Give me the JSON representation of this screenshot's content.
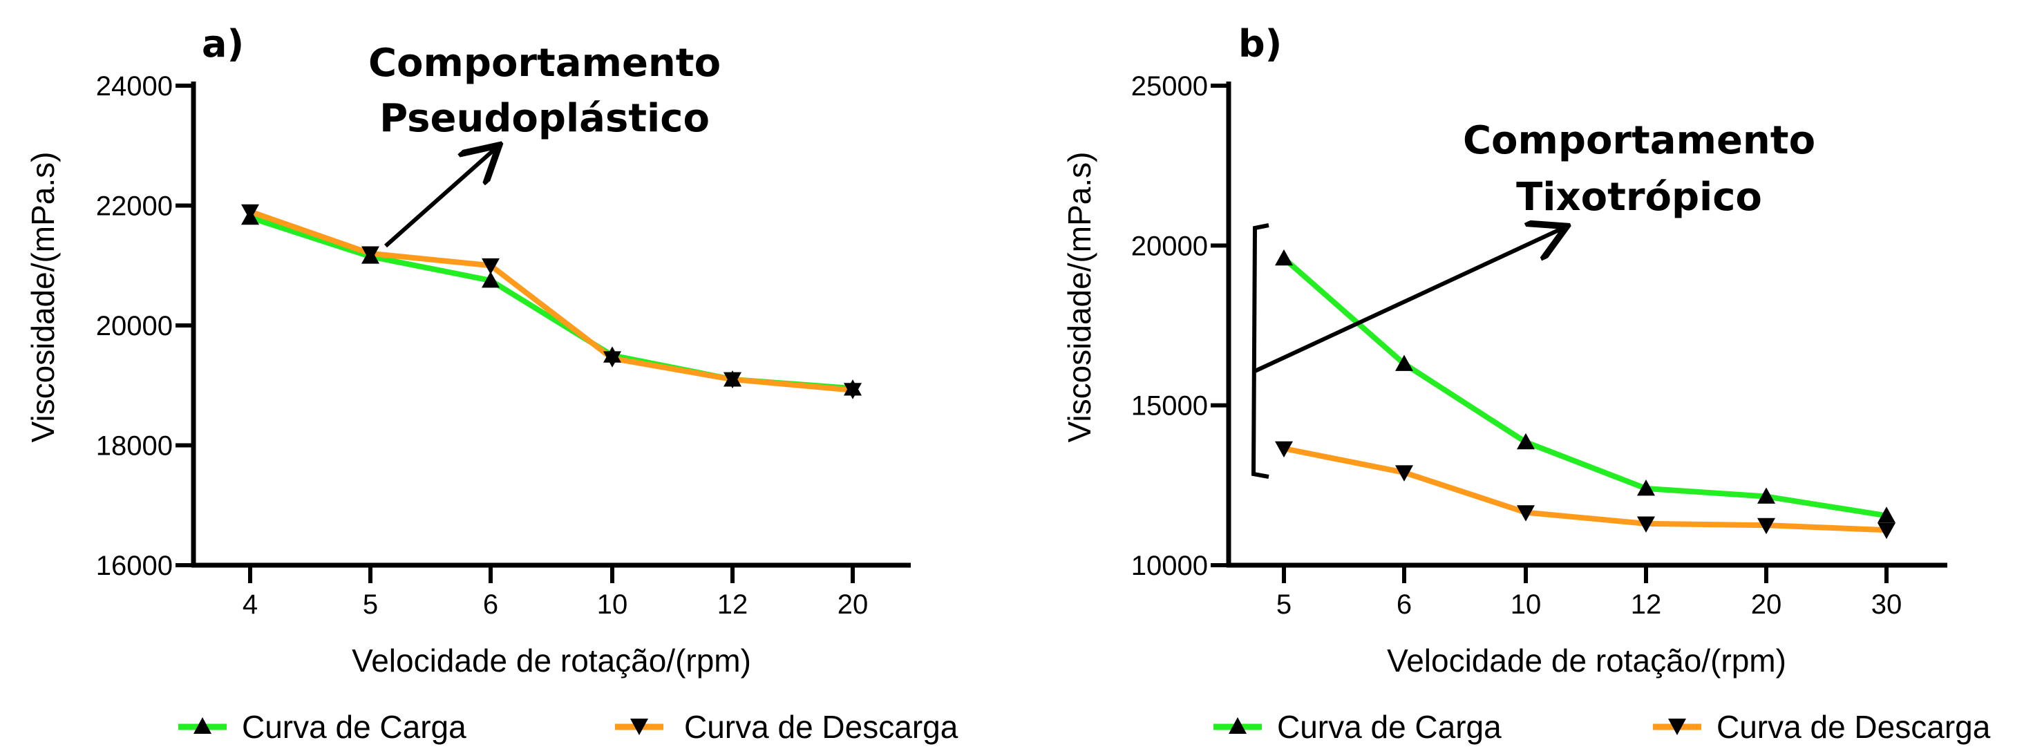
{
  "colors": {
    "carga": "#22ee22",
    "descarga": "#ff9a1a",
    "marker": "#000000",
    "axis": "#000000"
  },
  "chart_data": [
    {
      "type": "line",
      "panel": "a)",
      "xlabel": "Velocidade de rotação/(rpm)",
      "ylabel": "Viscosidade/(mPa.s)",
      "categories": [
        "4",
        "5",
        "6",
        "10",
        "12",
        "20"
      ],
      "ylim": [
        16000,
        24000
      ],
      "yticks": [
        "16000",
        "18000",
        "20000",
        "22000",
        "24000"
      ],
      "series": [
        {
          "name": "Curva de Carga",
          "marker": "triangle-up",
          "values": [
            21800,
            21150,
            20750,
            19500,
            19100,
            18950
          ]
        },
        {
          "name": "Curva de Descarga",
          "marker": "triangle-down",
          "values": [
            21900,
            21200,
            21000,
            19450,
            19100,
            18920
          ]
        }
      ],
      "annotation": {
        "line1": "Comportamento",
        "line2": "Pseudoplástico"
      },
      "legend_position": "bottom"
    },
    {
      "type": "line",
      "panel": "b)",
      "xlabel": "Velocidade de rotação/(rpm)",
      "ylabel": "Viscosidade/(mPa.s)",
      "categories": [
        "5",
        "6",
        "10",
        "12",
        "20",
        "30"
      ],
      "ylim": [
        10000,
        25000
      ],
      "yticks": [
        "10000",
        "15000",
        "20000",
        "25000"
      ],
      "series": [
        {
          "name": "Curva de Carga",
          "marker": "triangle-up",
          "values": [
            19600,
            16300,
            13850,
            12400,
            12150,
            11550
          ]
        },
        {
          "name": "Curva de Descarga",
          "marker": "triangle-down",
          "values": [
            13650,
            12900,
            11650,
            11300,
            11250,
            11100
          ]
        }
      ],
      "annotation": {
        "line1": "Comportamento",
        "line2": "Tixotrópico"
      },
      "legend_position": "bottom"
    }
  ]
}
